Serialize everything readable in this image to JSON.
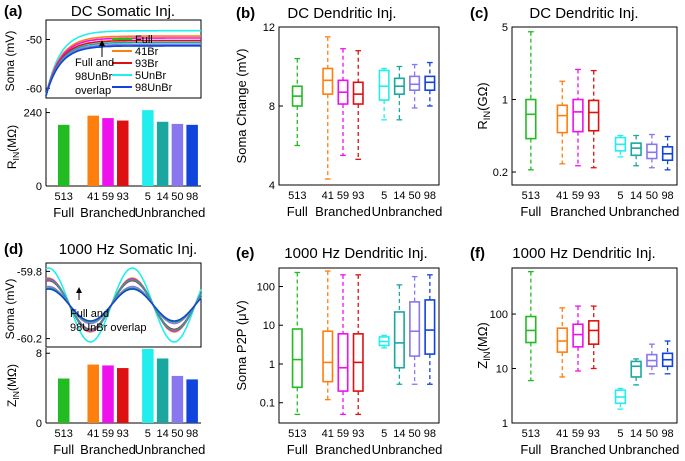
{
  "colors": {
    "full": "#22bb22",
    "b41": "#ff7f0e",
    "b59": "#ee11ee",
    "b93": "#dd1111",
    "u5": "#22eeee",
    "u14": "#1aa7a0",
    "u50": "#8877ee",
    "u98": "#1144dd"
  },
  "chart_data": [
    {
      "panel": "a",
      "type": "line",
      "letter": "(a)",
      "title": "DC Somatic Inj.",
      "ylabel": "Soma (mV)",
      "yticks": [
        "-50",
        "-60"
      ],
      "ylim": [
        -62,
        -46
      ],
      "series": [
        {
          "name": "u5",
          "steady": -48.2
        },
        {
          "name": "b41",
          "steady": -49.3
        },
        {
          "name": "b59",
          "steady": -49.7
        },
        {
          "name": "b93",
          "steady": -50.2
        },
        {
          "name": "u14",
          "steady": -50.6
        },
        {
          "name": "u50",
          "steady": -51.0
        },
        {
          "name": "full",
          "steady": -51.3
        },
        {
          "name": "u98",
          "steady": -51.3
        }
      ],
      "legend": [
        {
          "label": "Full",
          "color": "full"
        },
        {
          "label": "41Br",
          "color": "b41"
        },
        {
          "label": "93Br",
          "color": "b93"
        },
        {
          "label": "5UnBr",
          "color": "u5"
        },
        {
          "label": "98UnBr",
          "color": "u98"
        }
      ],
      "annotation": [
        "Full and",
        "98UnBr",
        "overlap"
      ]
    },
    {
      "panel": "a-bar",
      "type": "bar",
      "ylabel": "R",
      "ylabel_sub": "IN",
      "ylabel_unit": "(MΩ)",
      "yticks": [
        "240",
        "0"
      ],
      "ylim": [
        0,
        255
      ],
      "values": [
        200,
        230,
        222,
        214,
        248,
        210,
        203,
        200
      ],
      "colors": [
        "full",
        "b41",
        "b59",
        "b93",
        "u5",
        "u14",
        "u50",
        "u98"
      ],
      "tick_labels": [
        "513",
        "41",
        "59",
        "93",
        "5",
        "14",
        "50",
        "98"
      ],
      "group_labels": [
        "Full",
        "Branched",
        "Unbranched"
      ]
    },
    {
      "panel": "b",
      "type": "box",
      "scale": "linear",
      "letter": "(b)",
      "title": "DC Dendritic Inj.",
      "ylabel": "Soma Change (mV)",
      "ylim": [
        4,
        12
      ],
      "yticks": [
        4,
        8,
        12
      ],
      "ytick_labels": [
        "4",
        "8",
        "12"
      ],
      "boxes": [
        {
          "cat": "513",
          "color": "full",
          "min": 6.0,
          "q1": 8.0,
          "med": 8.5,
          "q3": 9.0,
          "max": 10.4
        },
        {
          "cat": "41",
          "color": "b41",
          "min": 4.3,
          "q1": 8.6,
          "med": 9.3,
          "q3": 9.9,
          "max": 11.5
        },
        {
          "cat": "59",
          "color": "b59",
          "min": 5.5,
          "q1": 8.1,
          "med": 8.7,
          "q3": 9.3,
          "max": 10.9
        },
        {
          "cat": "93",
          "color": "b93",
          "min": 5.3,
          "q1": 8.1,
          "med": 8.6,
          "q3": 9.2,
          "max": 10.8
        },
        {
          "cat": "5",
          "color": "u5",
          "min": 7.3,
          "q1": 8.3,
          "med": 9.0,
          "q3": 9.8,
          "max": 9.9
        },
        {
          "cat": "14",
          "color": "u14",
          "min": 7.3,
          "q1": 8.6,
          "med": 9.0,
          "q3": 9.4,
          "max": 10.0
        },
        {
          "cat": "50",
          "color": "u50",
          "min": 7.9,
          "q1": 8.8,
          "med": 9.1,
          "q3": 9.5,
          "max": 10.1
        },
        {
          "cat": "98",
          "color": "u98",
          "min": 8.0,
          "q1": 8.8,
          "med": 9.2,
          "q3": 9.5,
          "max": 10.2
        }
      ],
      "tick_labels": [
        "513",
        "41",
        "59",
        "93",
        "5",
        "14",
        "50",
        "98"
      ],
      "group_labels": [
        "Full",
        "Branched",
        "Unbranched"
      ]
    },
    {
      "panel": "c",
      "type": "box",
      "scale": "log",
      "letter": "(c)",
      "title": "DC Dendritic Inj.",
      "ylabel": "R",
      "ylabel_sub": "IN",
      "ylabel_unit": "(GΩ)",
      "ylim": [
        0.15,
        5
      ],
      "yticks": [
        0.2,
        1,
        5
      ],
      "ytick_labels": [
        "0.2",
        "1",
        "5"
      ],
      "boxes": [
        {
          "cat": "513",
          "color": "full",
          "min": 0.21,
          "q1": 0.42,
          "med": 0.72,
          "q3": 1.0,
          "max": 4.5
        },
        {
          "cat": "41",
          "color": "b41",
          "min": 0.24,
          "q1": 0.48,
          "med": 0.7,
          "q3": 0.88,
          "max": 1.5
        },
        {
          "cat": "59",
          "color": "b59",
          "min": 0.23,
          "q1": 0.49,
          "med": 0.76,
          "q3": 1.0,
          "max": 1.95
        },
        {
          "cat": "93",
          "color": "b93",
          "min": 0.22,
          "q1": 0.5,
          "med": 0.75,
          "q3": 0.98,
          "max": 1.9
        },
        {
          "cat": "5",
          "color": "u5",
          "min": 0.28,
          "q1": 0.32,
          "med": 0.37,
          "q3": 0.43,
          "max": 0.45
        },
        {
          "cat": "14",
          "color": "u14",
          "min": 0.23,
          "q1": 0.29,
          "med": 0.34,
          "q3": 0.38,
          "max": 0.45
        },
        {
          "cat": "50",
          "color": "u50",
          "min": 0.22,
          "q1": 0.27,
          "med": 0.31,
          "q3": 0.37,
          "max": 0.46
        },
        {
          "cat": "98",
          "color": "u98",
          "min": 0.21,
          "q1": 0.26,
          "med": 0.3,
          "q3": 0.35,
          "max": 0.44
        }
      ],
      "tick_labels": [
        "513",
        "41",
        "59",
        "93",
        "5",
        "14",
        "50",
        "98"
      ],
      "group_labels": [
        "Full",
        "Branched",
        "Unbranched"
      ]
    },
    {
      "panel": "d",
      "type": "line",
      "letter": "(d)",
      "title": "1000 Hz Somatic Inj.",
      "ylabel": "Soma (mV)",
      "yticks": [
        "-59.8",
        "-60.2"
      ],
      "ylim": [
        -60.25,
        -59.75
      ],
      "amplitudes": [
        {
          "name": "u5",
          "amp": 0.22
        },
        {
          "name": "b41",
          "amp": 0.16
        },
        {
          "name": "b59",
          "amp": 0.155
        },
        {
          "name": "b93",
          "amp": 0.145
        },
        {
          "name": "u14",
          "amp": 0.15
        },
        {
          "name": "u50",
          "amp": 0.11
        },
        {
          "name": "full",
          "amp": 0.1
        },
        {
          "name": "u98",
          "amp": 0.095
        }
      ],
      "annotation": [
        "Full and",
        "98UnBr overlap"
      ]
    },
    {
      "panel": "d-bar",
      "type": "bar",
      "ylabel": "Z",
      "ylabel_sub": "IN",
      "ylabel_unit": "(MΩ)",
      "yticks": [
        "8",
        "0"
      ],
      "ylim": [
        0,
        8.6
      ],
      "values": [
        5.1,
        6.7,
        6.6,
        6.3,
        8.5,
        7.4,
        5.4,
        5.0
      ],
      "colors": [
        "full",
        "b41",
        "b59",
        "b93",
        "u5",
        "u14",
        "u50",
        "u98"
      ],
      "tick_labels": [
        "513",
        "41",
        "59",
        "93",
        "5",
        "14",
        "50",
        "98"
      ],
      "group_labels": [
        "Full",
        "Branched",
        "Unbranched"
      ]
    },
    {
      "panel": "e",
      "type": "box",
      "scale": "log",
      "letter": "(e)",
      "title": "1000 Hz Dendritic Inj.",
      "ylabel": "Soma P2P (μV)",
      "ylim": [
        0.03,
        300
      ],
      "yticks": [
        0.1,
        1,
        10,
        100
      ],
      "ytick_labels": [
        "0.1",
        "1",
        "10",
        "100"
      ],
      "boxes": [
        {
          "cat": "513",
          "color": "full",
          "min": 0.05,
          "q1": 0.25,
          "med": 1.3,
          "q3": 8.0,
          "max": 230
        },
        {
          "cat": "41",
          "color": "b41",
          "min": 0.12,
          "q1": 0.35,
          "med": 1.1,
          "q3": 7.0,
          "max": 250
        },
        {
          "cat": "59",
          "color": "b59",
          "min": 0.05,
          "q1": 0.2,
          "med": 0.8,
          "q3": 6.0,
          "max": 200
        },
        {
          "cat": "93",
          "color": "b93",
          "min": 0.05,
          "q1": 0.2,
          "med": 1.1,
          "q3": 6.0,
          "max": 200
        },
        {
          "cat": "5",
          "color": "u5",
          "min": 2.6,
          "q1": 3.0,
          "med": 3.8,
          "q3": 5.0,
          "max": 5.5
        },
        {
          "cat": "14",
          "color": "u14",
          "min": 0.3,
          "q1": 0.8,
          "med": 3.5,
          "q3": 22,
          "max": 110
        },
        {
          "cat": "50",
          "color": "u50",
          "min": 0.3,
          "q1": 1.6,
          "med": 7.0,
          "q3": 40,
          "max": 180
        },
        {
          "cat": "98",
          "color": "u98",
          "min": 0.3,
          "q1": 1.8,
          "med": 7.5,
          "q3": 45,
          "max": 200
        }
      ],
      "tick_labels": [
        "513",
        "41",
        "59",
        "93",
        "5",
        "14",
        "50",
        "98"
      ],
      "group_labels": [
        "Full",
        "Branched",
        "Unbranched"
      ]
    },
    {
      "panel": "f",
      "type": "box",
      "scale": "log",
      "letter": "(f)",
      "title": "1000 Hz Dendritic Inj.",
      "ylabel": "Z",
      "ylabel_sub": "IN",
      "ylabel_unit": "(MΩ)",
      "ylim": [
        1,
        700
      ],
      "yticks": [
        1,
        10,
        100
      ],
      "ytick_labels": [
        "1",
        "10",
        "100"
      ],
      "boxes": [
        {
          "cat": "513",
          "color": "full",
          "min": 6.0,
          "q1": 30,
          "med": 50,
          "q3": 90,
          "max": 600
        },
        {
          "cat": "41",
          "color": "b41",
          "min": 7.0,
          "q1": 20,
          "med": 32,
          "q3": 55,
          "max": 130
        },
        {
          "cat": "59",
          "color": "b59",
          "min": 9.0,
          "q1": 25,
          "med": 42,
          "q3": 65,
          "max": 140
        },
        {
          "cat": "93",
          "color": "b93",
          "min": 10.0,
          "q1": 28,
          "med": 50,
          "q3": 75,
          "max": 140
        },
        {
          "cat": "5",
          "color": "u5",
          "min": 1.8,
          "q1": 2.3,
          "med": 3.0,
          "q3": 4.0,
          "max": 4.3
        },
        {
          "cat": "14",
          "color": "u14",
          "min": 5.0,
          "q1": 7.0,
          "med": 11,
          "q3": 13.5,
          "max": 15
        },
        {
          "cat": "50",
          "color": "u50",
          "min": 8.0,
          "q1": 11,
          "med": 14,
          "q3": 18,
          "max": 28
        },
        {
          "cat": "98",
          "color": "u98",
          "min": 8.0,
          "q1": 11,
          "med": 14.5,
          "q3": 19,
          "max": 32
        }
      ],
      "tick_labels": [
        "513",
        "41",
        "59",
        "93",
        "5",
        "14",
        "50",
        "98"
      ],
      "group_labels": [
        "Full",
        "Branched",
        "Unbranched"
      ]
    }
  ]
}
